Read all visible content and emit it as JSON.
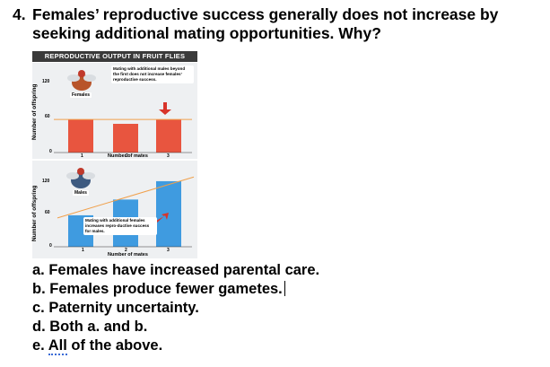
{
  "question": {
    "number": "4.",
    "line1": "Females’ reproductive success generally does not increase by",
    "line2": "seeking additional mating opportunities.  Why?"
  },
  "figure": {
    "header": "REPRODUCTIVE OUTPUT IN FRUIT FLIES",
    "females_label": "Females",
    "males_label": "Males",
    "ylabel": "Number of offspring",
    "xlabel": "Number of mates",
    "female_note": "Mating with additional males beyond the first does not increase females’ reproductive success.",
    "male_note": "Mating with additional females increases repro-ductive success for males.",
    "colors": {
      "female_bar": "#e8553f",
      "male_bar": "#3f9be0",
      "trend": "#f0a04b",
      "arrow": "#d8342a"
    }
  },
  "chart_data": [
    {
      "type": "bar",
      "title": "Females",
      "categories": [
        "1",
        "2",
        "3"
      ],
      "values": [
        60,
        52,
        60
      ],
      "yticks": [
        "120",
        "60",
        "0"
      ],
      "ylim": [
        0,
        130
      ],
      "xlabel": "Number of mates",
      "ylabel": "Number of offspring"
    },
    {
      "type": "bar",
      "title": "Males",
      "categories": [
        "1",
        "2",
        "3"
      ],
      "values": [
        60,
        90,
        125
      ],
      "yticks": [
        "120",
        "60",
        "0"
      ],
      "ylim": [
        0,
        130
      ],
      "xlabel": "Number of mates",
      "ylabel": "Number of offspring"
    }
  ],
  "answers": [
    "a. Females have increased parental care.",
    "b. Females produce fewer gametes.",
    "c. Paternity uncertainty.",
    "d. Both a. and b."
  ],
  "answer_e": {
    "prefix": "e. ",
    "word": "All",
    "rest": " of the above."
  }
}
